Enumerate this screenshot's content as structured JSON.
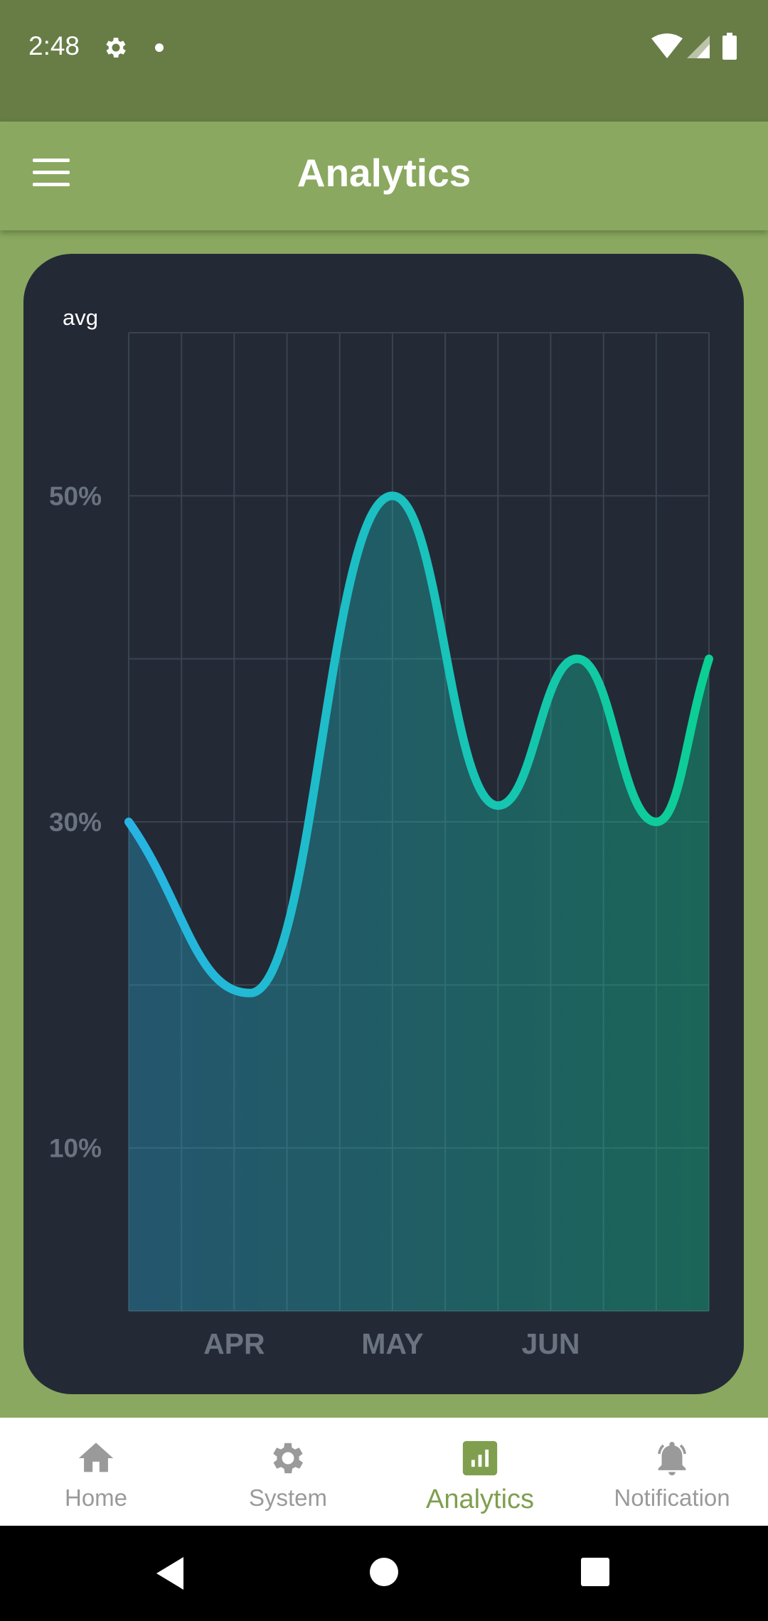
{
  "status_bar": {
    "time": "2:48",
    "icons": [
      "gear-icon",
      "notification-dot-icon",
      "wifi-icon",
      "signal-icon",
      "battery-icon"
    ]
  },
  "app_bar": {
    "title": "Analytics",
    "menu_icon": "hamburger-menu-icon"
  },
  "colors": {
    "status_bar": "#687d46",
    "app_bar": "#8aa85f",
    "card": "#232a36",
    "grid": "#3a4350",
    "line_start": "#27b4e4",
    "line_end": "#0ccf94",
    "axis_text": "#6b7380",
    "nav_active": "#7f9f4e",
    "nav_inactive": "#9a9a9a"
  },
  "chart_data": {
    "type": "area",
    "title": "",
    "ylabel": "avg",
    "xlabel": "",
    "x": [
      0,
      2.3,
      5,
      7,
      8.5,
      10,
      11
    ],
    "y": [
      30,
      19.5,
      50,
      31,
      40,
      30,
      40
    ],
    "x_tick_labels": [
      {
        "x": 2,
        "label": "APR"
      },
      {
        "x": 5,
        "label": "MAY"
      },
      {
        "x": 8,
        "label": "JUN"
      }
    ],
    "y_tick_labels": [
      {
        "y": 10,
        "label": "10%"
      },
      {
        "y": 30,
        "label": "30%"
      },
      {
        "y": 50,
        "label": "50%"
      }
    ],
    "xlim": [
      0,
      11
    ],
    "ylim": [
      0,
      60
    ],
    "grid": true,
    "y_grid_step": 10,
    "x_grid_step": 1,
    "smooth": true,
    "gradient_fill": true
  },
  "bottom_nav": {
    "items": [
      {
        "label": "Home",
        "icon": "home-icon",
        "active": false
      },
      {
        "label": "System",
        "icon": "gear-icon",
        "active": false
      },
      {
        "label": "Analytics",
        "icon": "analytics-icon",
        "active": true
      },
      {
        "label": "Notification",
        "icon": "bell-icon",
        "active": false
      }
    ]
  },
  "system_nav": {
    "icons": [
      "back-icon",
      "home-circle-icon",
      "recents-icon"
    ]
  }
}
